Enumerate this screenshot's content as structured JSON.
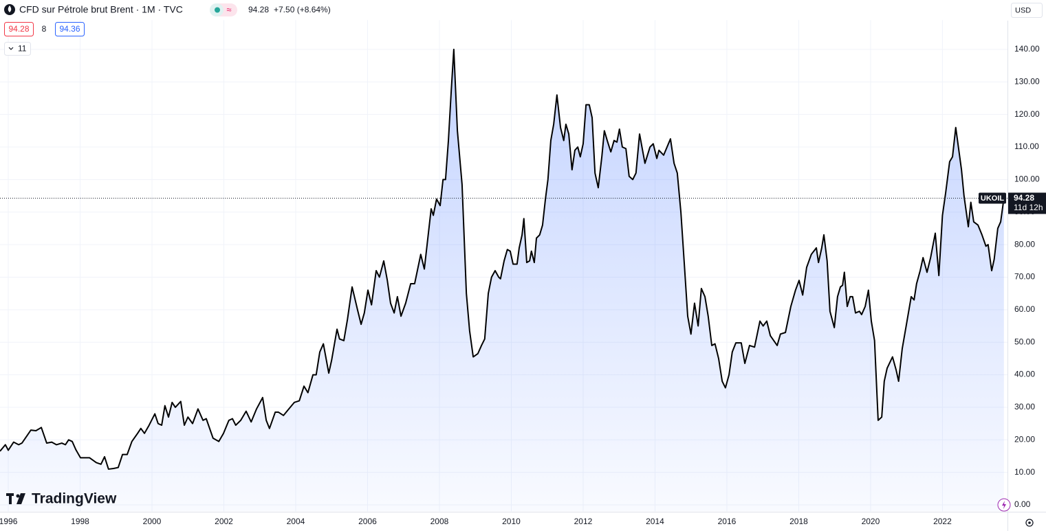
{
  "header": {
    "symbol": "CFD sur Pétrole brut Brent · 1M · TVC",
    "change": "+7.50 (+8.64%)",
    "bid": "94.28",
    "spread": "8",
    "ask": "94.36",
    "indicators": "11",
    "currency": "USD"
  },
  "chart_data": {
    "type": "area",
    "color": "#000000",
    "fill": "#2962ff",
    "grid": true,
    "last_price": 94.28,
    "last_label": "UKOIL",
    "countdown": "11d 12h",
    "watermark": "TradingView",
    "xlim": [
      1995.77,
      2023.81
    ],
    "xticks": [
      1996,
      1998,
      2000,
      2002,
      2004,
      2006,
      2008,
      2010,
      2012,
      2014,
      2016,
      2018,
      2020,
      2022
    ],
    "ylim": [
      -2,
      149
    ],
    "yticks": [
      {
        "value": 0,
        "label": "0.00"
      },
      {
        "value": 10,
        "label": "10.00"
      },
      {
        "value": 20,
        "label": "20.00"
      },
      {
        "value": 30,
        "label": "30.00"
      },
      {
        "value": 40,
        "label": "40.00"
      },
      {
        "value": 50,
        "label": "50.00"
      },
      {
        "value": 60,
        "label": "60.00"
      },
      {
        "value": 70,
        "label": "70.00"
      },
      {
        "value": 80,
        "label": "80.00"
      },
      {
        "value": 90,
        "label": "90.00"
      },
      {
        "value": 100,
        "label": "100.00"
      },
      {
        "value": 110,
        "label": "110.00"
      },
      {
        "value": 120,
        "label": "120.00"
      },
      {
        "value": 130,
        "label": "130.00"
      },
      {
        "value": 140,
        "label": "140.00"
      }
    ],
    "x": [
      1995.77,
      1995.92,
      1996.0,
      1996.15,
      1996.29,
      1996.38,
      1996.63,
      1996.77,
      1996.92,
      1997.07,
      1997.21,
      1997.34,
      1997.49,
      1997.59,
      1997.68,
      1997.78,
      1997.88,
      1998.01,
      1998.26,
      1998.45,
      1998.58,
      1998.68,
      1998.79,
      1998.93,
      1999.06,
      1999.18,
      1999.31,
      1999.44,
      1999.6,
      1999.69,
      1999.79,
      1999.92,
      2000.08,
      2000.17,
      2000.27,
      2000.36,
      2000.46,
      2000.56,
      2000.65,
      2000.8,
      2000.9,
      2001.0,
      2001.13,
      2001.28,
      2001.42,
      2001.51,
      2001.7,
      2001.86,
      2001.99,
      2002.14,
      2002.24,
      2002.33,
      2002.47,
      2002.62,
      2002.76,
      2002.91,
      2003.08,
      2003.18,
      2003.27,
      2003.43,
      2003.52,
      2003.66,
      2003.81,
      2003.96,
      2004.1,
      2004.23,
      2004.34,
      2004.48,
      2004.57,
      2004.67,
      2004.77,
      2004.92,
      2005.0,
      2005.15,
      2005.22,
      2005.34,
      2005.44,
      2005.57,
      2005.72,
      2005.82,
      2005.91,
      2006.01,
      2006.11,
      2006.24,
      2006.33,
      2006.45,
      2006.55,
      2006.64,
      2006.74,
      2006.83,
      2006.93,
      2007.06,
      2007.2,
      2007.31,
      2007.48,
      2007.58,
      2007.77,
      2007.83,
      2007.92,
      2008.02,
      2008.1,
      2008.17,
      2008.25,
      2008.33,
      2008.4,
      2008.5,
      2008.63,
      2008.75,
      2008.84,
      2008.94,
      2009.07,
      2009.17,
      2009.26,
      2009.36,
      2009.45,
      2009.55,
      2009.65,
      2009.7,
      2009.8,
      2009.89,
      2009.97,
      2010.05,
      2010.16,
      2010.22,
      2010.3,
      2010.35,
      2010.43,
      2010.51,
      2010.56,
      2010.64,
      2010.7,
      2010.79,
      2010.87,
      2010.95,
      2011.02,
      2011.1,
      2011.18,
      2011.27,
      2011.37,
      2011.46,
      2011.52,
      2011.6,
      2011.69,
      2011.77,
      2011.85,
      2011.92,
      2012.0,
      2012.08,
      2012.17,
      2012.25,
      2012.33,
      2012.42,
      2012.52,
      2012.59,
      2012.67,
      2012.77,
      2012.86,
      2012.94,
      2013.01,
      2013.09,
      2013.19,
      2013.28,
      2013.38,
      2013.47,
      2013.57,
      2013.72,
      2013.86,
      2013.95,
      2014.05,
      2014.11,
      2014.24,
      2014.43,
      2014.53,
      2014.62,
      2014.72,
      2014.81,
      2014.91,
      2015.0,
      2015.1,
      2015.2,
      2015.29,
      2015.39,
      2015.48,
      2015.58,
      2015.67,
      2015.77,
      2015.87,
      2015.96,
      2016.06,
      2016.15,
      2016.25,
      2016.4,
      2016.5,
      2016.63,
      2016.77,
      2016.92,
      2017.01,
      2017.11,
      2017.21,
      2017.4,
      2017.49,
      2017.63,
      2017.78,
      2017.91,
      2018.01,
      2018.11,
      2018.22,
      2018.35,
      2018.49,
      2018.55,
      2018.64,
      2018.7,
      2018.79,
      2018.87,
      2018.99,
      2019.08,
      2019.16,
      2019.22,
      2019.27,
      2019.35,
      2019.43,
      2019.5,
      2019.58,
      2019.69,
      2019.75,
      2019.85,
      2019.94,
      2020.02,
      2020.11,
      2020.21,
      2020.31,
      2020.38,
      2020.46,
      2020.61,
      2020.71,
      2020.78,
      2020.88,
      2020.99,
      2021.13,
      2021.21,
      2021.28,
      2021.38,
      2021.46,
      2021.57,
      2021.67,
      2021.8,
      2021.9,
      2022.0,
      2022.09,
      2022.2,
      2022.28,
      2022.37,
      2022.53,
      2022.6,
      2022.72,
      2022.79,
      2022.87,
      2022.99,
      2023.1,
      2023.21,
      2023.27,
      2023.37,
      2023.44,
      2023.54,
      2023.62,
      2023.71
    ],
    "values": [
      16.5,
      18.5,
      16.8,
      19.3,
      18.5,
      19,
      23,
      22.8,
      23.8,
      19,
      19.3,
      18.5,
      19,
      18.5,
      20,
      19.5,
      17,
      14.5,
      14.5,
      13,
      12.5,
      14.8,
      11,
      11.2,
      11.5,
      15.5,
      15.5,
      19.5,
      22,
      23.5,
      22,
      24.5,
      28,
      25,
      24.5,
      30.5,
      27,
      31.5,
      30,
      31.8,
      24.5,
      27,
      25,
      29.5,
      26,
      26.5,
      20.5,
      19.5,
      22,
      26,
      26.5,
      24.5,
      26,
      28.8,
      25.5,
      29.5,
      33,
      26,
      23.5,
      28.5,
      28.5,
      27.5,
      29.5,
      31.5,
      32,
      36.5,
      34.5,
      40,
      40,
      47,
      49.5,
      40.5,
      44.5,
      54,
      51,
      50.5,
      57,
      67,
      60,
      55.5,
      59,
      66,
      61.5,
      72,
      70,
      75,
      69,
      62,
      59,
      64,
      58,
      62,
      68,
      68,
      77,
      72.5,
      91,
      89,
      94,
      92,
      100,
      100,
      112,
      127.5,
      140,
      115,
      98.5,
      65,
      53.5,
      45.5,
      46.5,
      49,
      51,
      65,
      70,
      72,
      70,
      69.5,
      75,
      78.5,
      78,
      74,
      74,
      79,
      83,
      88,
      74.5,
      75,
      78,
      74.5,
      82,
      83,
      86,
      94,
      100,
      112,
      117,
      126,
      116,
      112,
      117,
      114,
      103,
      109,
      110,
      107,
      111,
      123,
      123,
      119,
      102,
      97.5,
      107,
      115,
      112,
      108.5,
      112,
      111.5,
      115.5,
      110,
      109.5,
      101,
      100,
      102,
      114,
      105,
      110,
      111,
      106.5,
      109,
      107.5,
      112.5,
      105,
      102,
      90,
      75,
      58,
      52.5,
      62,
      55,
      66.5,
      64,
      58,
      49,
      49.5,
      45,
      38,
      36,
      40,
      47,
      49.8,
      49.8,
      43.5,
      49,
      48.5,
      56.5,
      55,
      56.5,
      52,
      49,
      52.5,
      53,
      61,
      66,
      69,
      64.5,
      73,
      77,
      79,
      74.5,
      79,
      83,
      75,
      59.5,
      54.5,
      64,
      67,
      67.5,
      71.5,
      61,
      64,
      64,
      59,
      59.5,
      58.5,
      61,
      66,
      56.5,
      50.5,
      26,
      27,
      38,
      42,
      45.5,
      41.5,
      38,
      48,
      55,
      64,
      63,
      68,
      72,
      76,
      71.5,
      76,
      83.5,
      70.5,
      89,
      96,
      105.5,
      107,
      116,
      103,
      95,
      85.5,
      93,
      87,
      86,
      83,
      79.5,
      80,
      72,
      75.5,
      85,
      87,
      94.28
    ]
  }
}
